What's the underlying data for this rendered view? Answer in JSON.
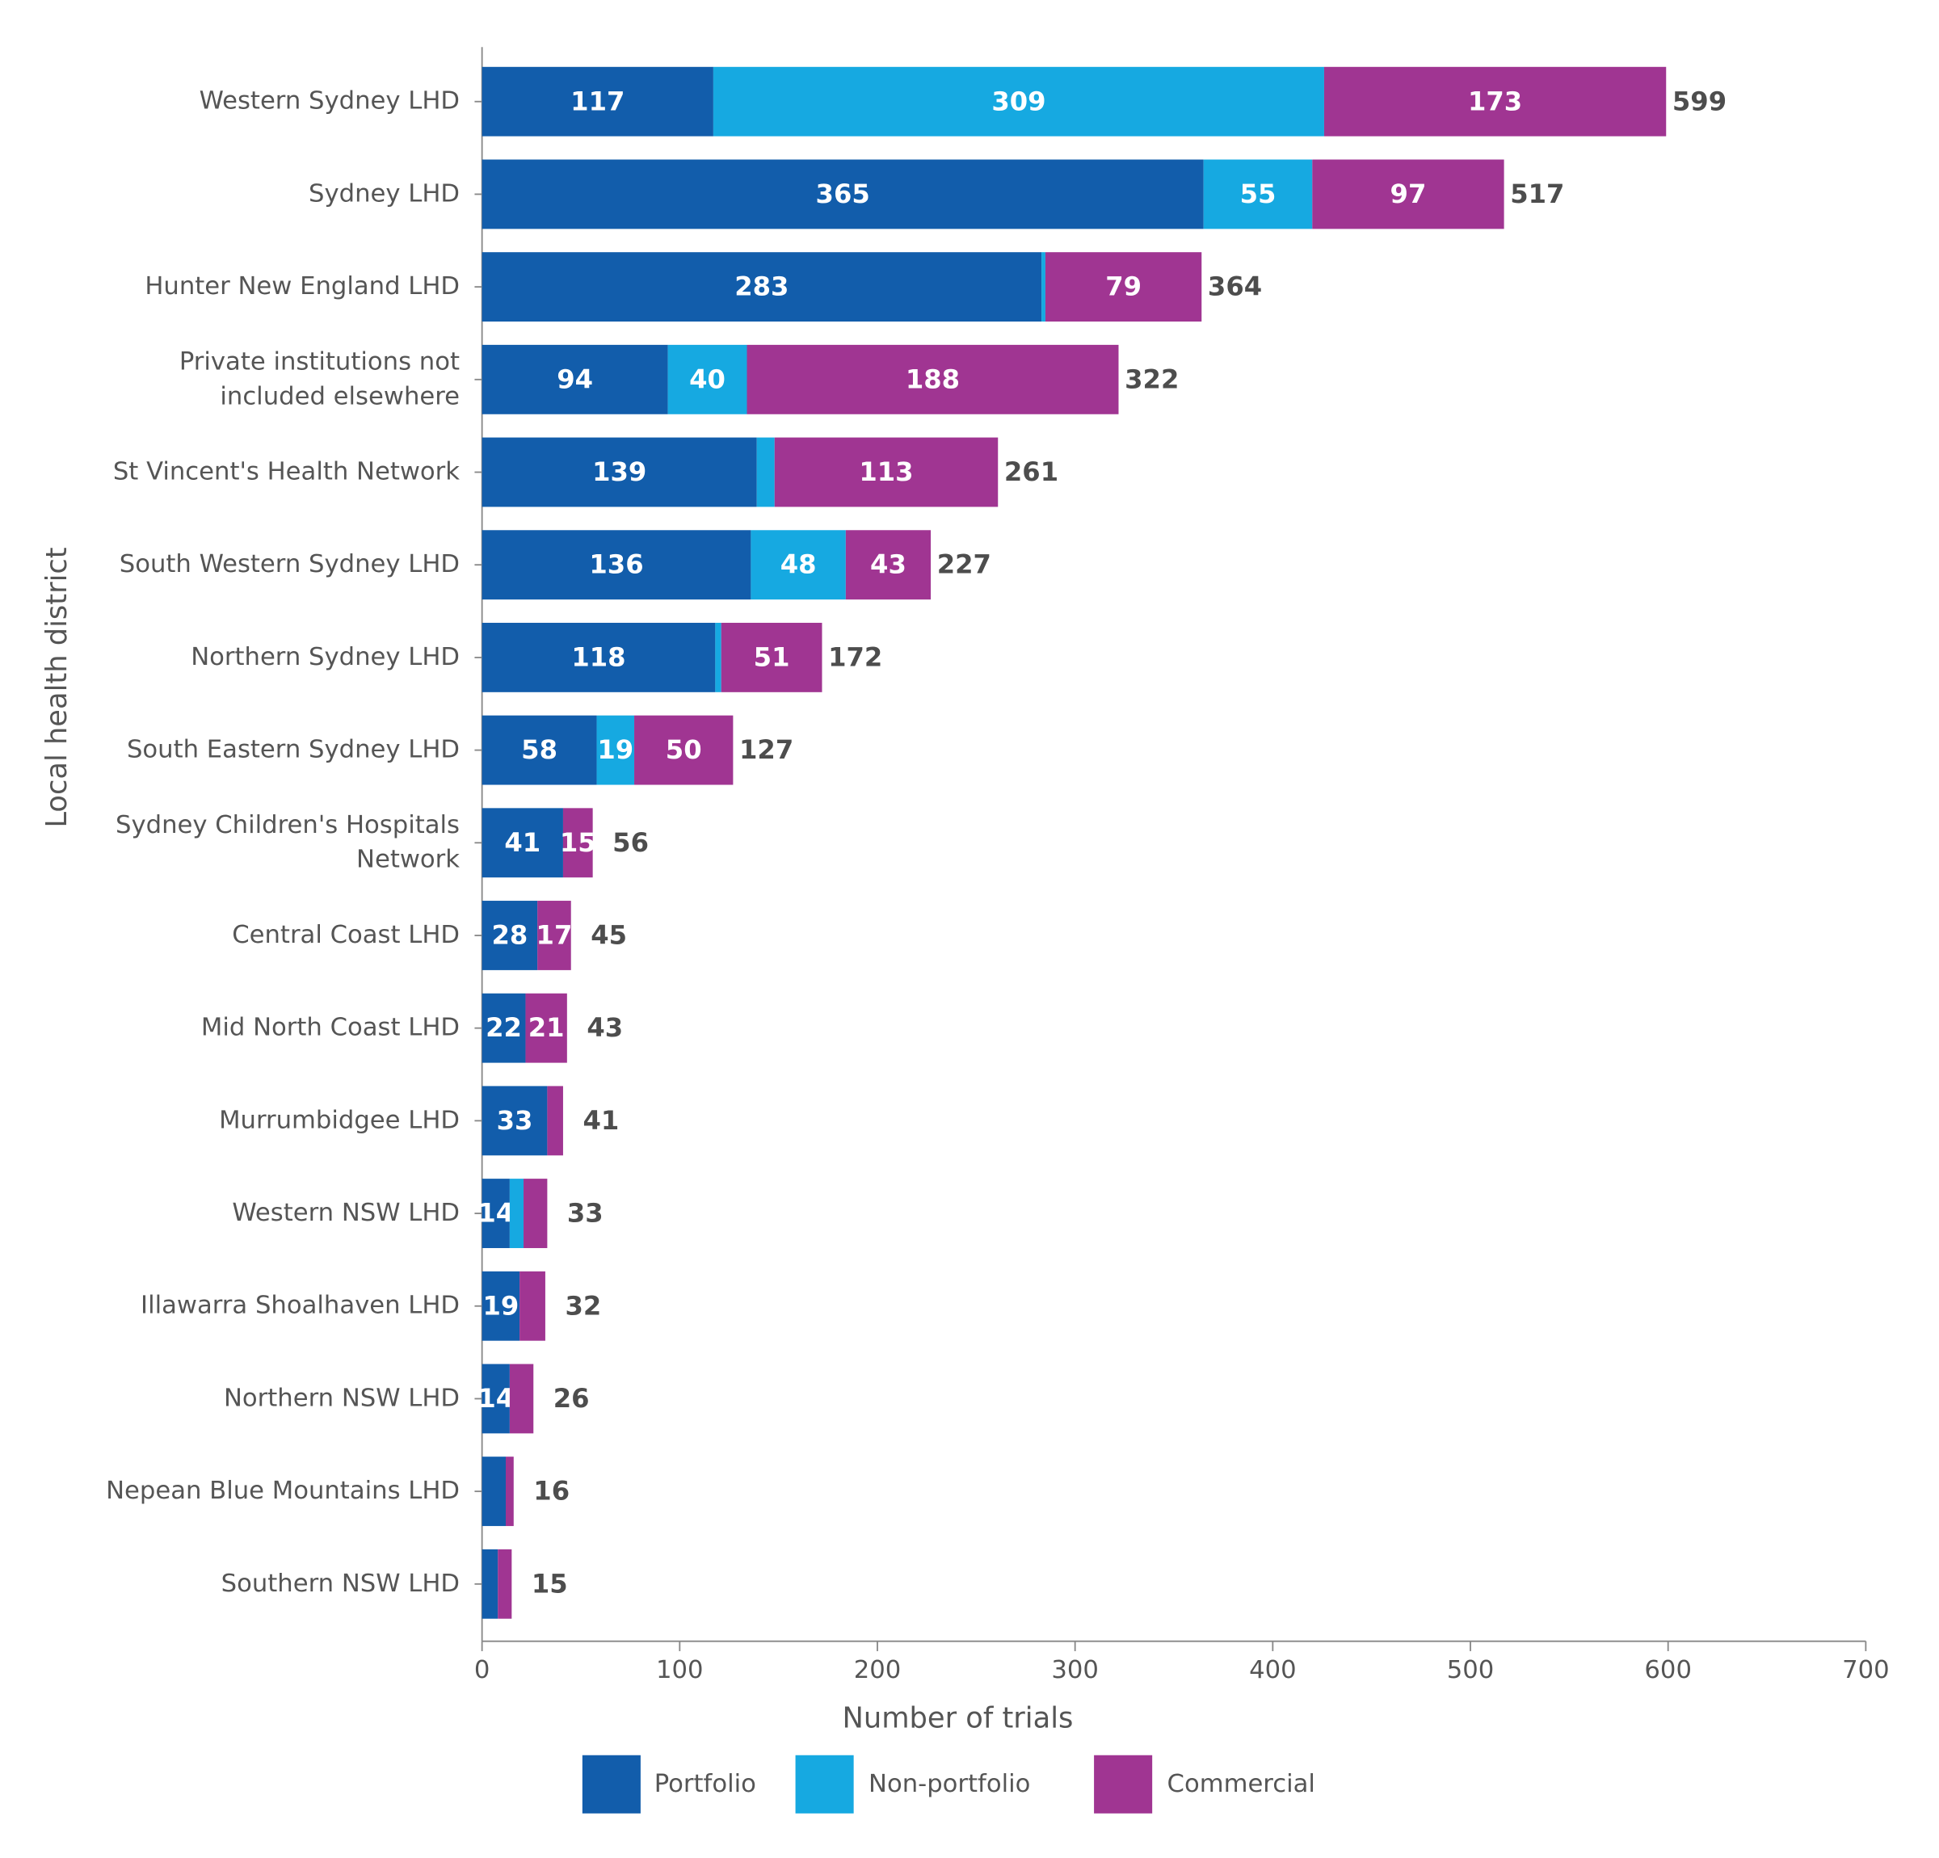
{
  "chart_data": {
    "type": "stacked-barh",
    "xlabel": "Number of trials",
    "ylabel": "Local health district",
    "categories": [
      "Western Sydney LHD",
      "Sydney LHD",
      "Hunter New England LHD",
      "Private institutions not\nincluded elsewhere",
      "St Vincent's Health Network",
      "South Western Sydney LHD",
      "Northern Sydney LHD",
      "South Eastern Sydney LHD",
      "Sydney Children's Hospitals\nNetwork",
      "Central Coast LHD",
      "Mid North Coast LHD",
      "Murrumbidgee LHD",
      "Western NSW LHD",
      "Illawarra Shoalhaven LHD",
      "Northern NSW LHD",
      "Nepean Blue Mountains LHD",
      "Southern NSW LHD"
    ],
    "series": [
      {
        "name": "Portfolio",
        "color": "#125dab",
        "values": [
          117,
          365,
          283,
          94,
          139,
          136,
          118,
          58,
          41,
          28,
          22,
          33,
          14,
          19,
          14,
          12,
          8
        ],
        "value_labels": [
          "117",
          "365",
          "283",
          "94",
          "139",
          "136",
          "118",
          "58",
          "41",
          "28",
          "22",
          "33",
          "14",
          "19",
          "14",
          null,
          null
        ]
      },
      {
        "name": "Non-portfolio",
        "color": "#16a9e1",
        "values": [
          309,
          55,
          2,
          40,
          9,
          48,
          3,
          19,
          0,
          0,
          0,
          0,
          7,
          0,
          0,
          0,
          0
        ],
        "value_labels": [
          "309",
          "55",
          null,
          "40",
          null,
          "48",
          null,
          "19",
          null,
          null,
          null,
          null,
          null,
          null,
          null,
          null,
          null
        ]
      },
      {
        "name": "Commercial",
        "color": "#a03592",
        "values": [
          173,
          97,
          79,
          188,
          113,
          43,
          51,
          50,
          15,
          17,
          21,
          8,
          12,
          13,
          12,
          4,
          7
        ],
        "value_labels": [
          "173",
          "97",
          "79",
          "188",
          "113",
          "43",
          "51",
          "50",
          "15",
          "17",
          "21",
          null,
          null,
          null,
          null,
          null,
          null
        ]
      }
    ],
    "totals": [
      599,
      517,
      364,
      322,
      261,
      227,
      172,
      127,
      56,
      45,
      43,
      41,
      33,
      32,
      26,
      16,
      15
    ],
    "xlim": [
      0,
      700
    ],
    "xticks": [
      0,
      100,
      200,
      300,
      400,
      500,
      600,
      700
    ],
    "legend": "bottom"
  }
}
